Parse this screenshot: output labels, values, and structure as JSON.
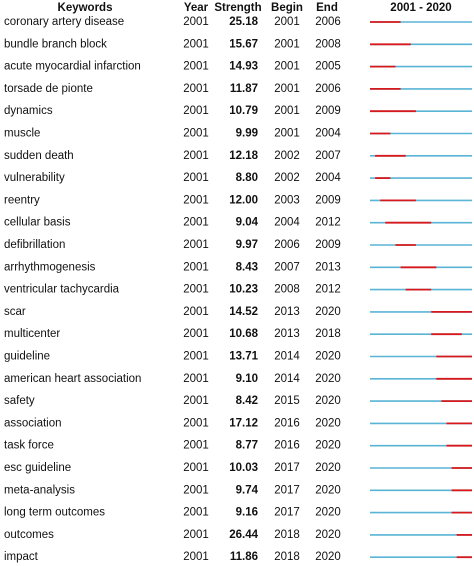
{
  "header": {
    "keywords": "Keywords",
    "year": "Year",
    "strength": "Strength",
    "begin": "Begin",
    "end": "End",
    "range": "2001 - 2020"
  },
  "rows": [
    {
      "keyword": "coronary artery disease",
      "year": 2001,
      "strength": "25.18",
      "begin": 2001,
      "end": 2006
    },
    {
      "keyword": "bundle branch block",
      "year": 2001,
      "strength": "15.67",
      "begin": 2001,
      "end": 2008
    },
    {
      "keyword": "acute myocardial infarction",
      "year": 2001,
      "strength": "14.93",
      "begin": 2001,
      "end": 2005
    },
    {
      "keyword": "torsade de pionte",
      "year": 2001,
      "strength": "11.87",
      "begin": 2001,
      "end": 2006
    },
    {
      "keyword": "dynamics",
      "year": 2001,
      "strength": "10.79",
      "begin": 2001,
      "end": 2009
    },
    {
      "keyword": "muscle",
      "year": 2001,
      "strength": "9.99",
      "begin": 2001,
      "end": 2004
    },
    {
      "keyword": "sudden death",
      "year": 2001,
      "strength": "12.18",
      "begin": 2002,
      "end": 2007
    },
    {
      "keyword": "vulnerability",
      "year": 2001,
      "strength": "8.80",
      "begin": 2002,
      "end": 2004
    },
    {
      "keyword": "reentry",
      "year": 2001,
      "strength": "12.00",
      "begin": 2003,
      "end": 2009
    },
    {
      "keyword": "cellular basis",
      "year": 2001,
      "strength": "9.04",
      "begin": 2004,
      "end": 2012
    },
    {
      "keyword": "defibrillation",
      "year": 2001,
      "strength": "9.97",
      "begin": 2006,
      "end": 2009
    },
    {
      "keyword": "arrhythmogenesis",
      "year": 2001,
      "strength": "8.43",
      "begin": 2007,
      "end": 2013
    },
    {
      "keyword": "ventricular tachycardia",
      "year": 2001,
      "strength": "10.23",
      "begin": 2008,
      "end": 2012
    },
    {
      "keyword": "scar",
      "year": 2001,
      "strength": "14.52",
      "begin": 2013,
      "end": 2020
    },
    {
      "keyword": "multicenter",
      "year": 2001,
      "strength": "10.68",
      "begin": 2013,
      "end": 2018
    },
    {
      "keyword": "guideline",
      "year": 2001,
      "strength": "13.71",
      "begin": 2014,
      "end": 2020
    },
    {
      "keyword": "american heart association",
      "year": 2001,
      "strength": "9.10",
      "begin": 2014,
      "end": 2020
    },
    {
      "keyword": "safety",
      "year": 2001,
      "strength": "8.42",
      "begin": 2015,
      "end": 2020
    },
    {
      "keyword": "association",
      "year": 2001,
      "strength": "17.12",
      "begin": 2016,
      "end": 2020
    },
    {
      "keyword": "task force",
      "year": 2001,
      "strength": "8.77",
      "begin": 2016,
      "end": 2020
    },
    {
      "keyword": "esc guideline",
      "year": 2001,
      "strength": "10.03",
      "begin": 2017,
      "end": 2020
    },
    {
      "keyword": "meta-analysis",
      "year": 2001,
      "strength": "9.74",
      "begin": 2017,
      "end": 2020
    },
    {
      "keyword": "long term outcomes",
      "year": 2001,
      "strength": "9.16",
      "begin": 2017,
      "end": 2020
    },
    {
      "keyword": "outcomes",
      "year": 2001,
      "strength": "26.44",
      "begin": 2018,
      "end": 2020
    },
    {
      "keyword": "impact",
      "year": 2001,
      "strength": "11.86",
      "begin": 2018,
      "end": 2020
    }
  ]
}
